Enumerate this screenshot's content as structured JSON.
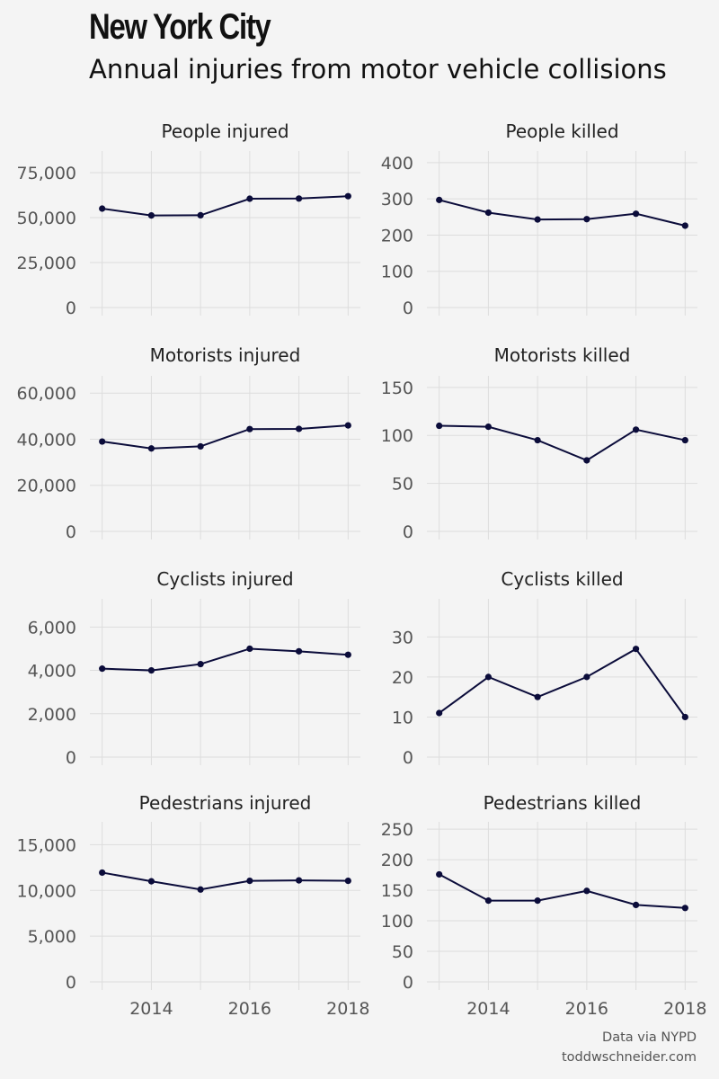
{
  "title": "New York City",
  "subtitle": "Annual injuries from motor vehicle collisions",
  "caption": {
    "source": "Data via NYPD",
    "site": "toddwschneider.com"
  },
  "colors": {
    "line": "#0b0c3a",
    "background": "#f4f4f4",
    "grid": "#dddddd"
  },
  "chart_data": [
    {
      "type": "line",
      "title": "People injured",
      "x": [
        2013,
        2014,
        2015,
        2016,
        2017,
        2018
      ],
      "values": [
        55000,
        51200,
        51300,
        60500,
        60600,
        61900
      ],
      "ylim": [
        0,
        87000
      ],
      "yticks": [
        0,
        25000,
        50000,
        75000
      ],
      "ytick_labels": [
        "0",
        "25,000",
        "50,000",
        "75,000"
      ]
    },
    {
      "type": "line",
      "title": "People killed",
      "x": [
        2013,
        2014,
        2015,
        2016,
        2017,
        2018
      ],
      "values": [
        297,
        262,
        243,
        244,
        259,
        226
      ],
      "ylim": [
        0,
        432
      ],
      "yticks": [
        0,
        100,
        200,
        300,
        400
      ],
      "ytick_labels": [
        "0",
        "100",
        "200",
        "300",
        "400"
      ]
    },
    {
      "type": "line",
      "title": "Motorists injured",
      "x": [
        2013,
        2014,
        2015,
        2016,
        2017,
        2018
      ],
      "values": [
        39000,
        36000,
        36900,
        44400,
        44500,
        46000
      ],
      "ylim": [
        0,
        67500
      ],
      "yticks": [
        0,
        20000,
        40000,
        60000
      ],
      "ytick_labels": [
        "0",
        "20,000",
        "40,000",
        "60,000"
      ]
    },
    {
      "type": "line",
      "title": "Motorists killed",
      "x": [
        2013,
        2014,
        2015,
        2016,
        2017,
        2018
      ],
      "values": [
        110,
        109,
        95,
        74,
        106,
        95
      ],
      "ylim": [
        0,
        162
      ],
      "yticks": [
        0,
        50,
        100,
        150
      ],
      "ytick_labels": [
        "0",
        "50",
        "100",
        "150"
      ]
    },
    {
      "type": "line",
      "title": "Cyclists injured",
      "x": [
        2013,
        2014,
        2015,
        2016,
        2017,
        2018
      ],
      "values": [
        4080,
        4000,
        4290,
        5000,
        4880,
        4720
      ],
      "ylim": [
        0,
        7300
      ],
      "yticks": [
        0,
        2000,
        4000,
        6000
      ],
      "ytick_labels": [
        "0",
        "2,000",
        "4,000",
        "6,000"
      ]
    },
    {
      "type": "line",
      "title": "Cyclists killed",
      "x": [
        2013,
        2014,
        2015,
        2016,
        2017,
        2018
      ],
      "values": [
        11,
        20,
        15,
        20,
        27,
        10
      ],
      "ylim": [
        0,
        39.5
      ],
      "yticks": [
        0,
        10,
        20,
        30
      ],
      "ytick_labels": [
        "0",
        "10",
        "20",
        "30"
      ]
    },
    {
      "type": "line",
      "title": "Pedestrians injured",
      "x": [
        2013,
        2014,
        2015,
        2016,
        2017,
        2018
      ],
      "values": [
        11950,
        11000,
        10100,
        11050,
        11100,
        11050
      ],
      "ylim": [
        0,
        17500
      ],
      "yticks": [
        0,
        5000,
        10000,
        15000
      ],
      "ytick_labels": [
        "0",
        "5,000",
        "10,000",
        "15,000"
      ]
    },
    {
      "type": "line",
      "title": "Pedestrians killed",
      "x": [
        2013,
        2014,
        2015,
        2016,
        2017,
        2018
      ],
      "values": [
        176,
        133,
        133,
        149,
        126,
        121
      ],
      "ylim": [
        0,
        262
      ],
      "yticks": [
        0,
        50,
        100,
        150,
        200,
        250
      ],
      "ytick_labels": [
        "0",
        "50",
        "100",
        "150",
        "200",
        "250"
      ]
    }
  ],
  "x_axis": {
    "ticks": [
      2014,
      2016,
      2018
    ],
    "labels": [
      "2014",
      "2016",
      "2018"
    ]
  }
}
